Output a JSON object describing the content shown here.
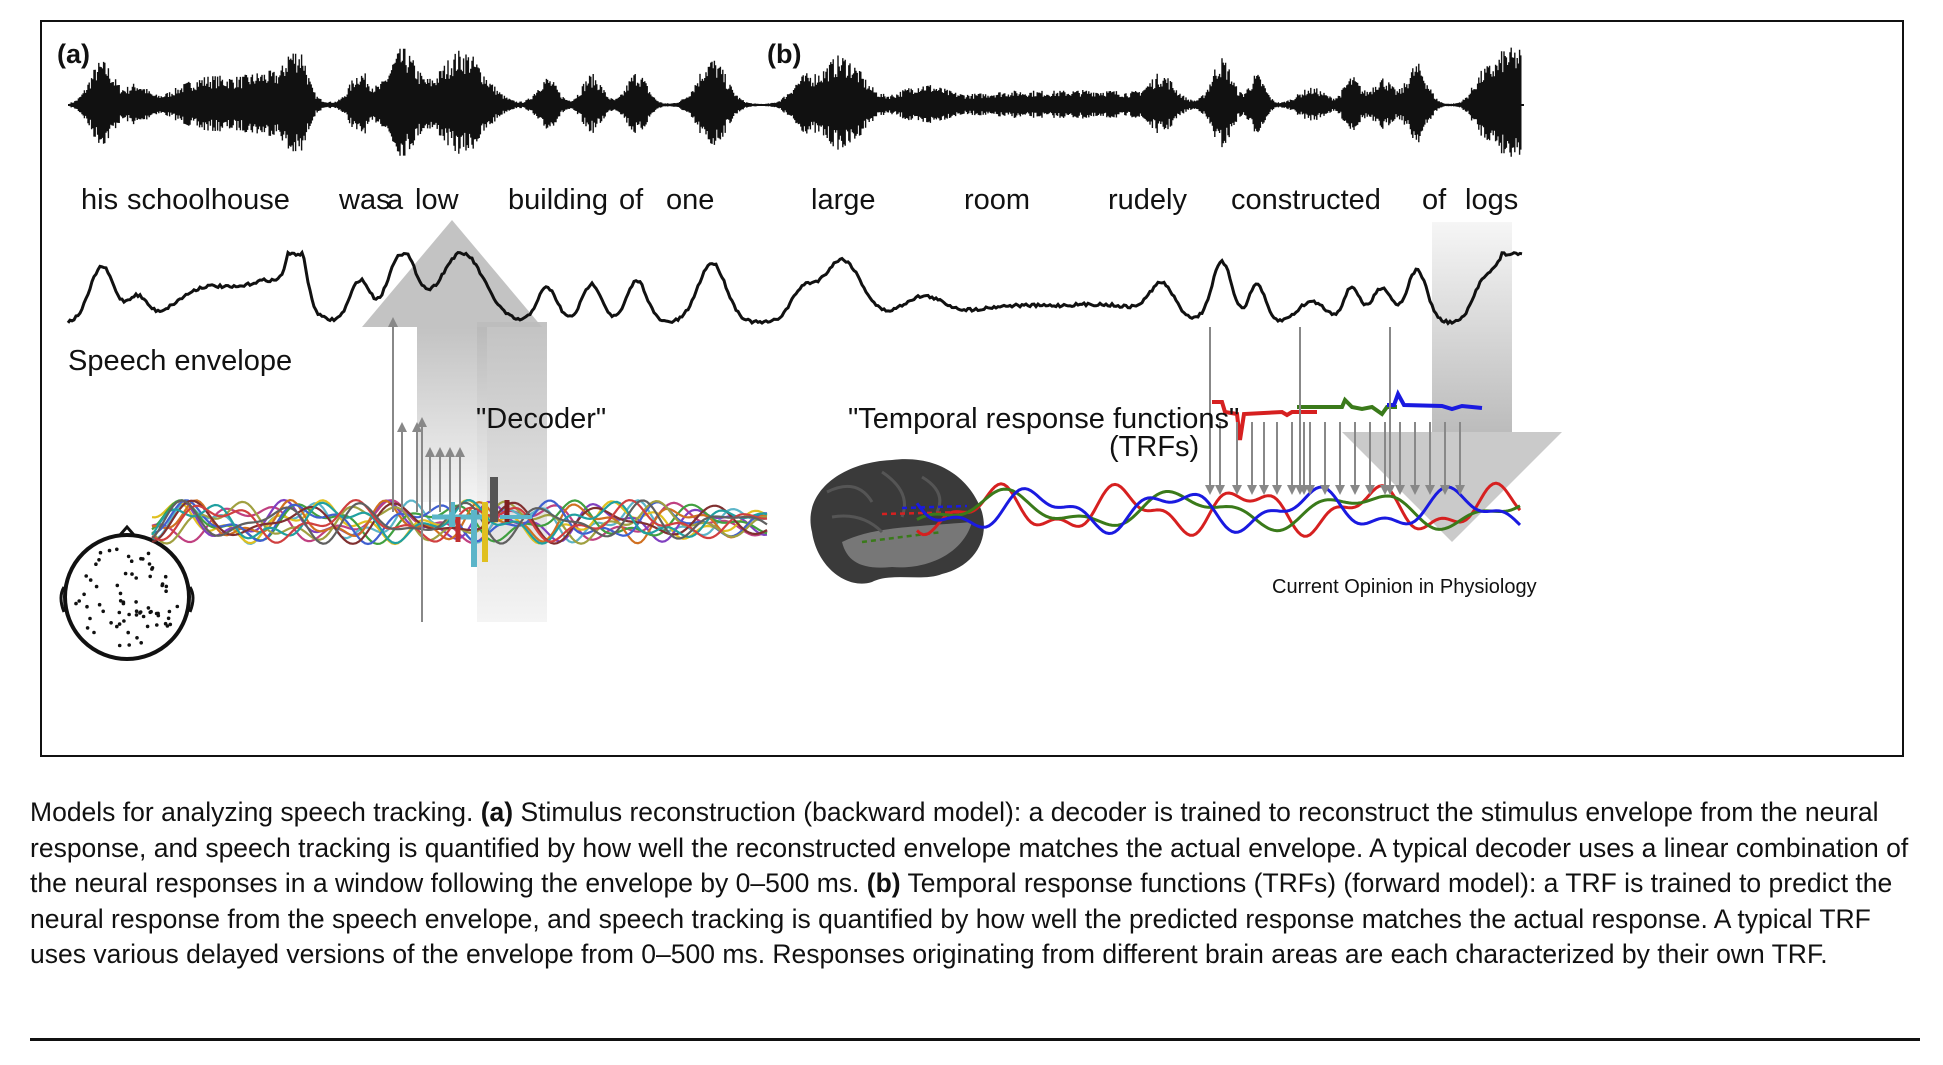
{
  "figure": {
    "panel_a_label": "(a)",
    "panel_b_label": "(b)",
    "words": [
      "his",
      "schoolhouse",
      "was",
      "a",
      "low",
      "building",
      "of",
      "one",
      "large",
      "room",
      "rudely",
      "constructed",
      "of",
      "logs"
    ],
    "speech_envelope_label": "Speech envelope",
    "decoder_label": "\"Decoder\"",
    "trf_label_line1": "\"Temporal response functions\"",
    "trf_label_line2": "(TRFs)",
    "credit": "Current Opinion in Physiology",
    "colors": {
      "waveform": "#111111",
      "arrow": "#c8c8c8",
      "trf_red": "#d62020",
      "trf_green": "#3a7a1a",
      "trf_blue": "#1a1ae0",
      "pointer": "#888888"
    },
    "icons": [
      "eeg-head-icon",
      "brain-icon",
      "up-arrow-icon",
      "down-arrow-icon"
    ]
  },
  "caption": {
    "intro": "Models for analyzing speech tracking. ",
    "a_label": "(a)",
    "a_text": " Stimulus reconstruction (backward model): a decoder is trained to reconstruct the stimulus envelope from the neural response, and speech tracking is quantified by how well the reconstructed envelope matches the actual envelope. A typical decoder uses a linear combination of the neural responses in a window following the envelope by 0–500 ms. ",
    "b_label": "(b)",
    "b_text": " Temporal response functions (TRFs) (forward model): a TRF is trained to predict the neural response from the speech envelope, and speech tracking is quantified by how well the predicted response matches the actual response. A typical TRF uses various delayed versions of the envelope from 0–500 ms. Responses originating from different brain areas are each characterized by their own TRF."
  }
}
